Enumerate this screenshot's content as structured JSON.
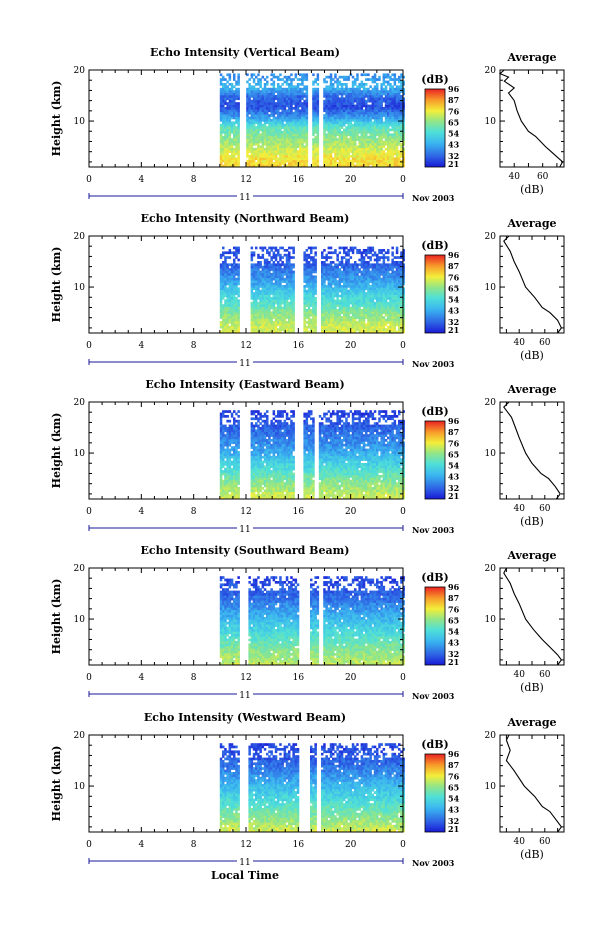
{
  "figure": {
    "xlabel_bottom": "Local Time",
    "colorbar_unit": "(dB)",
    "colorbar_ticks": [
      "96",
      "87",
      "76",
      "65",
      "54",
      "43",
      "32",
      "21"
    ],
    "avg_title": "Average",
    "avg_xlabel": "(dB)"
  },
  "chart_data": [
    {
      "type": "heatmap",
      "title": "Echo Intensity (Vertical Beam)",
      "ylabel": "Height (km)",
      "ylim": [
        1,
        20
      ],
      "yticks": [
        "20",
        "10"
      ],
      "xlim": [
        0,
        24
      ],
      "xticks": [
        "0",
        "4",
        "8",
        "12",
        "16",
        "20",
        "0"
      ],
      "date_label": "11",
      "date_right": "Nov 2003",
      "colorscale": {
        "min": 21,
        "max": 96
      },
      "data_start_hour": 10,
      "gaps_hours": [
        [
          11.4,
          12
        ],
        [
          16.7,
          17
        ],
        [
          17.5,
          17.8
        ]
      ],
      "profiles": [
        [
          19.0,
          38
        ],
        [
          17.0,
          45
        ],
        [
          15.0,
          32
        ],
        [
          13.0,
          28
        ],
        [
          11.0,
          40
        ],
        [
          9.0,
          58
        ],
        [
          7.0,
          64
        ],
        [
          5.0,
          70
        ],
        [
          3.0,
          76
        ],
        [
          1.5,
          78
        ]
      ],
      "average_profile": {
        "xticks": [
          "40",
          "60"
        ],
        "xlim": [
          30,
          75
        ],
        "points": [
          [
            33,
            20
          ],
          [
            30,
            19.3
          ],
          [
            36,
            18.6
          ],
          [
            33,
            17.8
          ],
          [
            40,
            16.5
          ],
          [
            36,
            15.5
          ],
          [
            40,
            14
          ],
          [
            42,
            12
          ],
          [
            45,
            10
          ],
          [
            50,
            8
          ],
          [
            55,
            7
          ],
          [
            62,
            5
          ],
          [
            66,
            4
          ],
          [
            70,
            3
          ],
          [
            74,
            2
          ],
          [
            72,
            1
          ]
        ]
      }
    },
    {
      "type": "heatmap",
      "title": "Echo Intensity (Northward Beam)",
      "ylabel": "Height (km)",
      "ylim": [
        1,
        20
      ],
      "yticks": [
        "20",
        "10"
      ],
      "xlim": [
        0,
        24
      ],
      "xticks": [
        "0",
        "4",
        "8",
        "12",
        "16",
        "20",
        "0"
      ],
      "date_label": "11",
      "date_right": "Nov 2003",
      "colorscale": {
        "min": 21,
        "max": 96
      },
      "data_start_hour": 10,
      "gaps_hours": [
        [
          11.5,
          12.2
        ],
        [
          15.7,
          16.3
        ],
        [
          17.3,
          17.6
        ]
      ],
      "profiles": [
        [
          17.5,
          28
        ],
        [
          15.0,
          30
        ],
        [
          13.0,
          36
        ],
        [
          11.0,
          42
        ],
        [
          9.0,
          50
        ],
        [
          7.0,
          56
        ],
        [
          5.0,
          64
        ],
        [
          3.0,
          70
        ],
        [
          1.5,
          72
        ]
      ],
      "average_profile": {
        "xticks": [
          "40",
          "60"
        ],
        "xlim": [
          25,
          75
        ],
        "points": [
          [
            32,
            20
          ],
          [
            28,
            19
          ],
          [
            33,
            17
          ],
          [
            36,
            15
          ],
          [
            40,
            13
          ],
          [
            45,
            10
          ],
          [
            52,
            8
          ],
          [
            58,
            6
          ],
          [
            64,
            5
          ],
          [
            70,
            3.5
          ],
          [
            73,
            2
          ],
          [
            70,
            1
          ]
        ]
      }
    },
    {
      "type": "heatmap",
      "title": "Echo Intensity (Eastward Beam)",
      "ylabel": "Height (km)",
      "ylim": [
        1,
        20
      ],
      "yticks": [
        "20",
        "10"
      ],
      "xlim": [
        0,
        24
      ],
      "xticks": [
        "0",
        "4",
        "8",
        "12",
        "16",
        "20",
        "0"
      ],
      "date_label": "11",
      "date_right": "Nov 2003",
      "colorscale": {
        "min": 21,
        "max": 96
      },
      "data_start_hour": 10,
      "gaps_hours": [
        [
          11.5,
          12.2
        ],
        [
          15.7,
          16.3
        ],
        [
          17.1,
          17.4
        ]
      ],
      "profiles": [
        [
          18.0,
          27
        ],
        [
          16.0,
          30
        ],
        [
          13.0,
          36
        ],
        [
          11.0,
          40
        ],
        [
          9.0,
          48
        ],
        [
          7.0,
          55
        ],
        [
          5.0,
          62
        ],
        [
          3.0,
          68
        ],
        [
          1.5,
          72
        ]
      ],
      "average_profile": {
        "xticks": [
          "40",
          "60"
        ],
        "xlim": [
          25,
          75
        ],
        "points": [
          [
            32,
            20
          ],
          [
            28,
            19
          ],
          [
            34,
            17
          ],
          [
            37,
            15
          ],
          [
            40,
            13
          ],
          [
            45,
            10
          ],
          [
            50,
            8
          ],
          [
            57,
            6
          ],
          [
            63,
            5
          ],
          [
            68,
            3.5
          ],
          [
            72,
            2
          ],
          [
            69,
            1
          ]
        ]
      }
    },
    {
      "type": "heatmap",
      "title": "Echo Intensity (Southward Beam)",
      "ylabel": "Height (km)",
      "ylim": [
        1,
        20
      ],
      "yticks": [
        "20",
        "10"
      ],
      "xlim": [
        0,
        24
      ],
      "xticks": [
        "0",
        "4",
        "8",
        "12",
        "16",
        "20",
        "0"
      ],
      "date_label": "11",
      "date_right": "Nov 2003",
      "colorscale": {
        "min": 21,
        "max": 96
      },
      "data_start_hour": 10,
      "gaps_hours": [
        [
          11.4,
          12.1
        ],
        [
          16.0,
          16.8
        ],
        [
          17.4,
          17.8
        ]
      ],
      "profiles": [
        [
          18.0,
          27
        ],
        [
          16.0,
          30
        ],
        [
          14.0,
          34
        ],
        [
          12.0,
          40
        ],
        [
          10.0,
          46
        ],
        [
          8.0,
          52
        ],
        [
          6.0,
          58
        ],
        [
          4.0,
          64
        ],
        [
          2.0,
          68
        ],
        [
          1.5,
          70
        ]
      ],
      "average_profile": {
        "xticks": [
          "40",
          "60"
        ],
        "xlim": [
          25,
          75
        ],
        "points": [
          [
            30,
            20
          ],
          [
            28,
            19
          ],
          [
            33,
            17
          ],
          [
            36,
            15
          ],
          [
            40,
            13
          ],
          [
            45,
            10
          ],
          [
            51,
            8
          ],
          [
            58,
            6
          ],
          [
            64,
            4.5
          ],
          [
            70,
            3
          ],
          [
            73,
            2
          ],
          [
            70,
            1
          ]
        ]
      }
    },
    {
      "type": "heatmap",
      "title": "Echo Intensity (Westward Beam)",
      "ylabel": "Height (km)",
      "ylim": [
        1,
        20
      ],
      "yticks": [
        "20",
        "10"
      ],
      "xlim": [
        0,
        24
      ],
      "xticks": [
        "0",
        "4",
        "8",
        "12",
        "16",
        "20",
        "0"
      ],
      "date_label": "11",
      "date_right": "Nov 2003",
      "colorscale": {
        "min": 21,
        "max": 96
      },
      "data_start_hour": 10,
      "gaps_hours": [
        [
          11.5,
          12.1
        ],
        [
          16.0,
          16.8
        ],
        [
          17.3,
          17.7
        ]
      ],
      "profiles": [
        [
          18.0,
          27
        ],
        [
          16.0,
          30
        ],
        [
          14.0,
          34
        ],
        [
          12.0,
          40
        ],
        [
          10.0,
          46
        ],
        [
          8.0,
          52
        ],
        [
          6.0,
          58
        ],
        [
          4.0,
          64
        ],
        [
          2.0,
          70
        ],
        [
          1.5,
          72
        ]
      ],
      "average_profile": {
        "xticks": [
          "40",
          "60"
        ],
        "xlim": [
          25,
          75
        ],
        "points": [
          [
            32,
            20
          ],
          [
            30,
            19
          ],
          [
            33,
            17
          ],
          [
            30,
            15
          ],
          [
            36,
            13
          ],
          [
            44,
            10
          ],
          [
            52,
            8
          ],
          [
            58,
            6
          ],
          [
            64,
            5
          ],
          [
            70,
            3
          ],
          [
            73,
            2
          ],
          [
            70,
            1
          ]
        ]
      }
    }
  ]
}
